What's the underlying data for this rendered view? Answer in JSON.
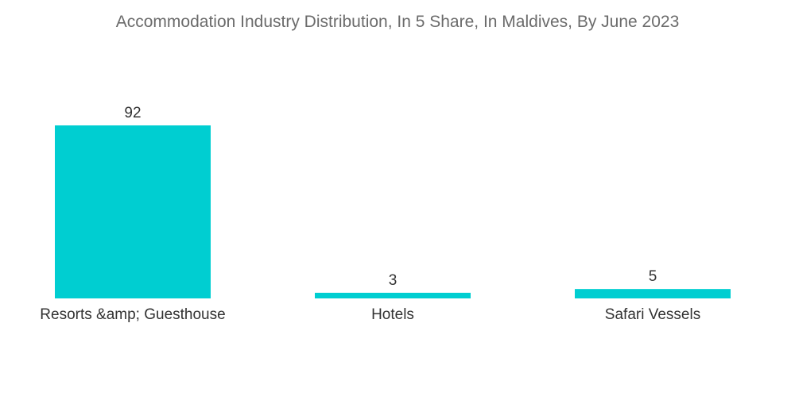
{
  "chart_data": {
    "type": "bar",
    "title": "Accommodation Industry Distribution, In 5 Share, In Maldives, By June 2023",
    "categories": [
      "Resorts &amp; Guesthouse",
      "Hotels",
      "Safari Vessels"
    ],
    "values": [
      92,
      3,
      5
    ],
    "xlabel": "",
    "ylabel": "",
    "ylim": [
      0,
      92
    ],
    "grid": false,
    "bar_color": "#00ced1"
  }
}
